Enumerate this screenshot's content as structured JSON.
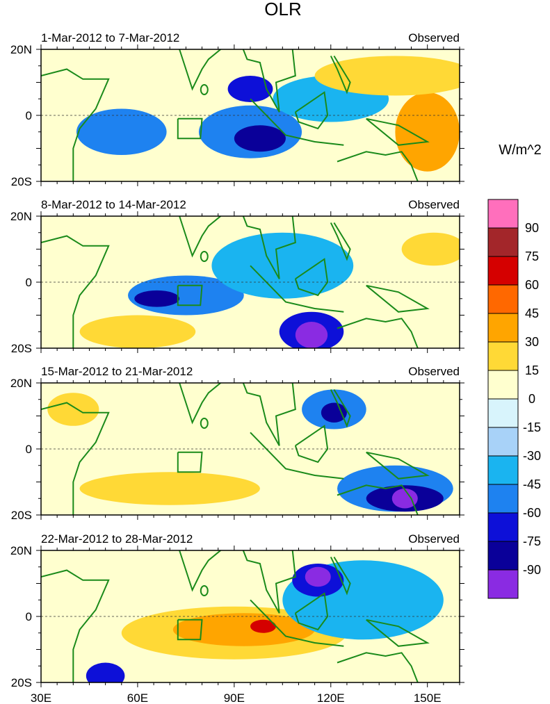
{
  "chart_data": {
    "type": "heatmap",
    "title": "OLR",
    "units_label": "W/m^2",
    "x_ticks": [
      {
        "value": 30,
        "label": "30E"
      },
      {
        "value": 60,
        "label": "60E"
      },
      {
        "value": 90,
        "label": "90E"
      },
      {
        "value": 120,
        "label": "120E"
      },
      {
        "value": 150,
        "label": "150E"
      }
    ],
    "y_ticks": [
      {
        "value": 20,
        "label": "20N"
      },
      {
        "value": 0,
        "label": "0"
      },
      {
        "value": -20,
        "label": "20S"
      }
    ],
    "xlim": [
      30,
      160
    ],
    "ylim": [
      -20,
      20
    ],
    "colorbar": {
      "labels": [
        "90",
        "75",
        "60",
        "45",
        "30",
        "15",
        "0",
        "-15",
        "-30",
        "-45",
        "-60",
        "-75",
        "-90"
      ],
      "colors": [
        "#ff6fbc",
        "#a3262a",
        "#d50000",
        "#ff6800",
        "#ffa500",
        "#ffd936",
        "#ffffcf",
        "#d8f4fc",
        "#a8d2f8",
        "#1ab4f0",
        "#1e82f0",
        "#0d10d8",
        "#0a0099",
        "#8a2be2"
      ]
    },
    "panels": [
      {
        "period": "1-Mar-2012 to 7-Mar-2012",
        "tag": "Observed",
        "blobs": [
          {
            "lon": 95,
            "lat": -5,
            "rx": 16,
            "ry": 8,
            "level": -45
          },
          {
            "lon": 98,
            "lat": -7,
            "rx": 8,
            "ry": 4,
            "level": -75
          },
          {
            "lon": 95,
            "lat": 8,
            "rx": 7,
            "ry": 4,
            "level": -60
          },
          {
            "lon": 55,
            "lat": -5,
            "rx": 14,
            "ry": 7,
            "level": -45
          },
          {
            "lon": 120,
            "lat": 5,
            "rx": 18,
            "ry": 7,
            "level": -30
          },
          {
            "lon": 150,
            "lat": -5,
            "rx": 10,
            "ry": 12,
            "level": 30
          },
          {
            "lon": 140,
            "lat": 12,
            "rx": 25,
            "ry": 6,
            "level": 15
          }
        ]
      },
      {
        "period": "8-Mar-2012 to 14-Mar-2012",
        "tag": "Observed",
        "blobs": [
          {
            "lon": 75,
            "lat": -4,
            "rx": 18,
            "ry": 6,
            "level": -45
          },
          {
            "lon": 66,
            "lat": -5,
            "rx": 7,
            "ry": 2.5,
            "level": -75
          },
          {
            "lon": 114,
            "lat": -15,
            "rx": 10,
            "ry": 6,
            "level": -60
          },
          {
            "lon": 114,
            "lat": -16,
            "rx": 5,
            "ry": 4,
            "level": -90
          },
          {
            "lon": 105,
            "lat": 5,
            "rx": 22,
            "ry": 10,
            "level": -30
          },
          {
            "lon": 60,
            "lat": -15,
            "rx": 18,
            "ry": 5,
            "level": 15
          },
          {
            "lon": 152,
            "lat": 10,
            "rx": 10,
            "ry": 5,
            "level": 15
          }
        ]
      },
      {
        "period": "15-Mar-2012 to 21-Mar-2012",
        "tag": "Observed",
        "blobs": [
          {
            "lon": 140,
            "lat": -12,
            "rx": 18,
            "ry": 7,
            "level": -45
          },
          {
            "lon": 143,
            "lat": -15,
            "rx": 12,
            "ry": 4,
            "level": -75
          },
          {
            "lon": 143,
            "lat": -15,
            "rx": 4,
            "ry": 3,
            "level": -90
          },
          {
            "lon": 121,
            "lat": 12,
            "rx": 10,
            "ry": 6,
            "level": -45
          },
          {
            "lon": 121,
            "lat": 11,
            "rx": 4,
            "ry": 3,
            "level": -75
          },
          {
            "lon": 70,
            "lat": -12,
            "rx": 28,
            "ry": 5,
            "level": 15
          },
          {
            "lon": 40,
            "lat": 12,
            "rx": 8,
            "ry": 5,
            "level": 15
          }
        ]
      },
      {
        "period": "22-Mar-2012 to 28-Mar-2012",
        "tag": "Observed",
        "blobs": [
          {
            "lon": 90,
            "lat": -5,
            "rx": 35,
            "ry": 8,
            "level": 15
          },
          {
            "lon": 93,
            "lat": -4,
            "rx": 22,
            "ry": 5,
            "level": 30
          },
          {
            "lon": 99,
            "lat": -3,
            "rx": 4,
            "ry": 2,
            "level": 60
          },
          {
            "lon": 130,
            "lat": 5,
            "rx": 25,
            "ry": 12,
            "level": -30
          },
          {
            "lon": 116,
            "lat": 11,
            "rx": 8,
            "ry": 5,
            "level": -60
          },
          {
            "lon": 116,
            "lat": 12,
            "rx": 4,
            "ry": 3,
            "level": -90
          },
          {
            "lon": 50,
            "lat": -18,
            "rx": 6,
            "ry": 4,
            "level": -60
          }
        ]
      }
    ]
  }
}
